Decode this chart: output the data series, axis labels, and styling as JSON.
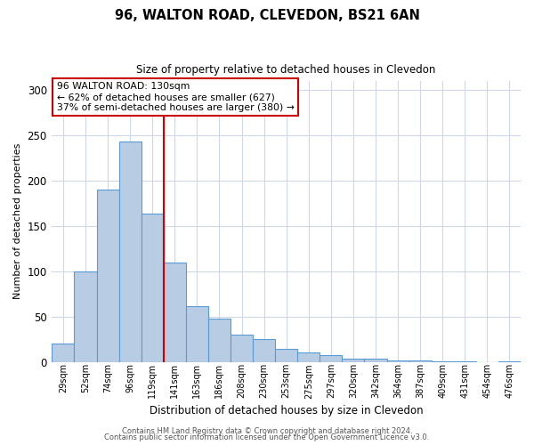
{
  "title": "96, WALTON ROAD, CLEVEDON, BS21 6AN",
  "subtitle": "Size of property relative to detached houses in Clevedon",
  "xlabel": "Distribution of detached houses by size in Clevedon",
  "ylabel": "Number of detached properties",
  "bar_labels": [
    "29sqm",
    "52sqm",
    "74sqm",
    "96sqm",
    "119sqm",
    "141sqm",
    "163sqm",
    "186sqm",
    "208sqm",
    "230sqm",
    "253sqm",
    "275sqm",
    "297sqm",
    "320sqm",
    "342sqm",
    "364sqm",
    "387sqm",
    "409sqm",
    "431sqm",
    "454sqm",
    "476sqm"
  ],
  "bar_values": [
    20,
    100,
    190,
    243,
    164,
    110,
    62,
    48,
    30,
    25,
    14,
    10,
    8,
    4,
    4,
    2,
    2,
    1,
    1,
    0,
    1
  ],
  "bar_color": "#b8cce4",
  "bar_edge_color": "#5b9bd5",
  "vline_color": "#cc0000",
  "vline_pos": 4.5,
  "ylim": [
    0,
    310
  ],
  "yticks": [
    0,
    50,
    100,
    150,
    200,
    250,
    300
  ],
  "annotation_title": "96 WALTON ROAD: 130sqm",
  "annotation_line1": "← 62% of detached houses are smaller (627)",
  "annotation_line2": "37% of semi-detached houses are larger (380) →",
  "annotation_box_color": "#ffffff",
  "annotation_box_edge": "#cc0000",
  "footer1": "Contains HM Land Registry data © Crown copyright and database right 2024.",
  "footer2": "Contains public sector information licensed under the Open Government Licence v3.0.",
  "background_color": "#ffffff",
  "grid_color": "#d0d8e8"
}
